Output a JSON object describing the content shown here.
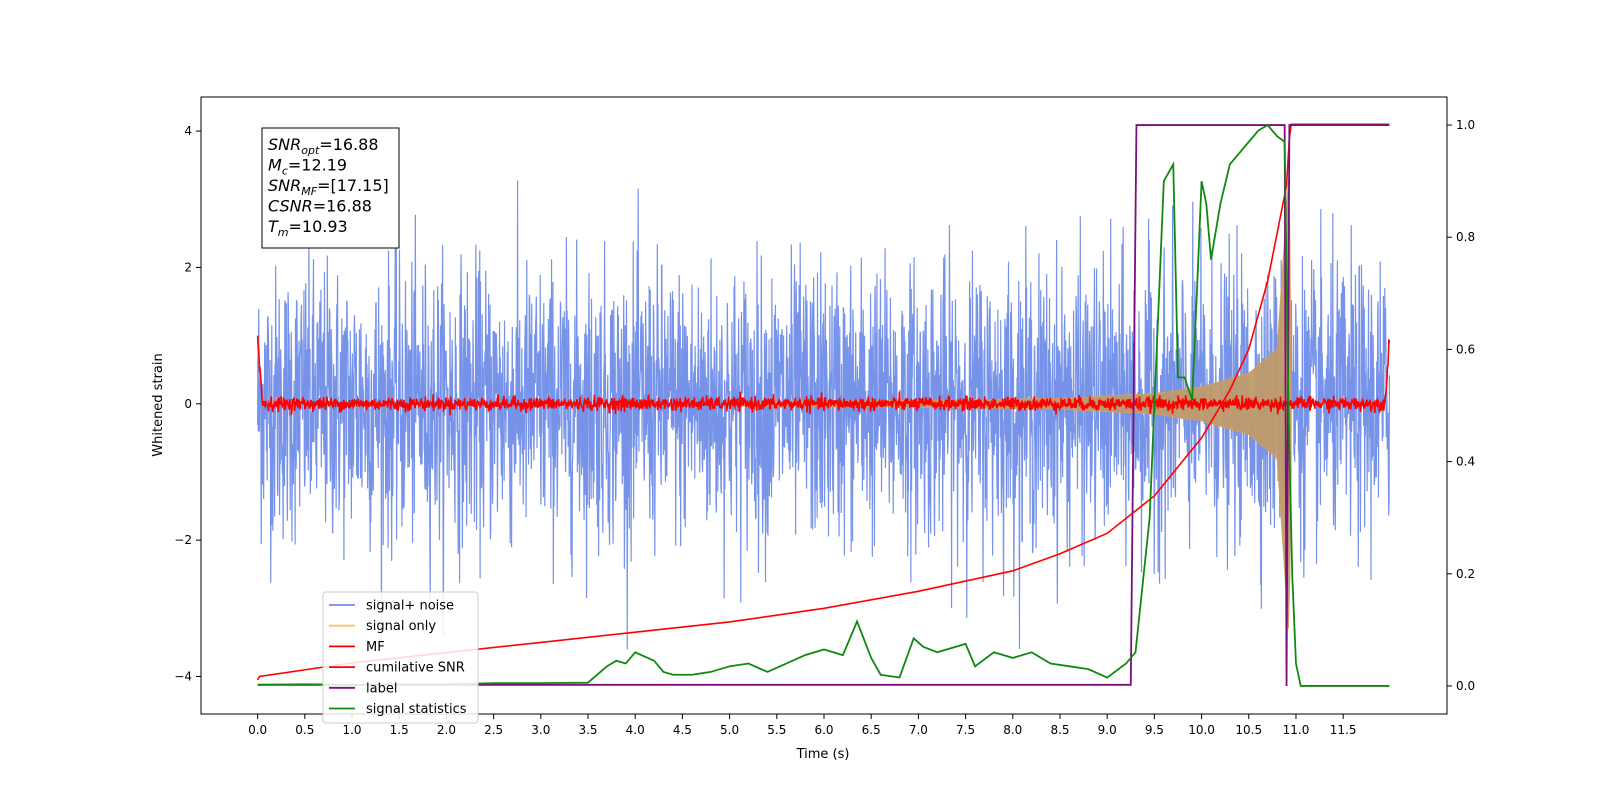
{
  "chart_data": {
    "type": "line",
    "xlabel": "Time (s)",
    "ylabel": "Whitened strain",
    "ylabel_right": "",
    "xlim": [
      -0.6,
      12.6
    ],
    "ylim": [
      -4.55,
      4.5
    ],
    "ylim_right": [
      -0.05,
      1.05
    ],
    "x_ticks": [
      "0.0",
      "0.5",
      "1.0",
      "1.5",
      "2.0",
      "2.5",
      "3.0",
      "3.5",
      "4.0",
      "4.5",
      "5.0",
      "5.5",
      "6.0",
      "6.5",
      "7.0",
      "7.5",
      "8.0",
      "8.5",
      "9.0",
      "9.5",
      "10.0",
      "10.5",
      "11.0",
      "11.5"
    ],
    "y_ticks": [
      "4",
      "2",
      "0",
      "−2",
      "−4"
    ],
    "y_ticks_right": [
      "1.0",
      "0.8",
      "0.6",
      "0.4",
      "0.2",
      "0.0"
    ],
    "annotation": {
      "lines": [
        {
          "base": "SNR",
          "sub": "opt",
          "value": "=16.88"
        },
        {
          "base": "M",
          "sub": "c",
          "value": "=12.19"
        },
        {
          "base": "SNR",
          "sub": "MF",
          "value": "=[17.15]"
        },
        {
          "base": "CSNR",
          "sub": "",
          "value": "=16.88"
        },
        {
          "base": "T",
          "sub": "m",
          "value": "=10.93"
        }
      ]
    },
    "legend": {
      "placement": "lower-left",
      "entries": [
        {
          "label": "signal+ noise",
          "color": "#6f8de8"
        },
        {
          "label": "signal only",
          "color": "#f5c36a"
        },
        {
          "label": "MF",
          "color": "#ff0000"
        },
        {
          "label": "cumilative SNR",
          "color": "#ff0000"
        },
        {
          "label": "label",
          "color": "#7b0f7b"
        },
        {
          "label": "signal statistics",
          "color": "#118811"
        }
      ]
    },
    "series": [
      {
        "name": "signal+ noise",
        "axis": "left",
        "description_values": {
          "x_range": [
            0.0,
            11.99
          ],
          "typical_amplitude": 1.0,
          "max_abs": 3.6
        }
      },
      {
        "name": "signal only",
        "axis": "left",
        "envelope": [
          [
            5.0,
            0.03
          ],
          [
            7.0,
            0.05
          ],
          [
            8.5,
            0.08
          ],
          [
            9.5,
            0.15
          ],
          [
            10.0,
            0.25
          ],
          [
            10.5,
            0.45
          ],
          [
            10.8,
            0.8
          ],
          [
            10.93,
            3.5
          ],
          [
            10.95,
            0.0
          ]
        ]
      },
      {
        "name": "MF",
        "axis": "left",
        "description_values": {
          "x_range": [
            0.0,
            11.99
          ],
          "typical_amplitude": 0.05,
          "edge_values": [
            [
              0.0,
              1.0
            ],
            [
              11.99,
              0.9
            ]
          ]
        }
      },
      {
        "name": "cumilative SNR",
        "axis": "left",
        "x": [
          0.0,
          0.02,
          1.0,
          2.0,
          3.0,
          4.0,
          5.0,
          6.0,
          7.0,
          8.0,
          8.5,
          9.0,
          9.5,
          10.0,
          10.3,
          10.5,
          10.7,
          10.8,
          10.9,
          10.93,
          10.95,
          11.0,
          11.5,
          11.99
        ],
        "values": [
          -4.05,
          -4.0,
          -3.8,
          -3.65,
          -3.5,
          -3.35,
          -3.2,
          -3.0,
          -2.75,
          -2.45,
          -2.2,
          -1.9,
          -1.35,
          -0.5,
          0.2,
          0.8,
          1.8,
          2.5,
          3.2,
          3.9,
          4.1,
          4.1,
          4.1,
          4.1
        ]
      },
      {
        "name": "label",
        "axis": "right",
        "x": [
          0.0,
          9.25,
          9.31,
          10.88,
          10.9,
          10.93,
          11.99
        ],
        "values": [
          0.002,
          0.002,
          1.0,
          1.0,
          0.0,
          1.0,
          1.0
        ]
      },
      {
        "name": "signal statistics",
        "axis": "right",
        "x": [
          0.0,
          0.5,
          1.0,
          2.0,
          2.5,
          3.0,
          3.5,
          3.7,
          3.8,
          3.9,
          4.0,
          4.2,
          4.3,
          4.4,
          4.6,
          4.8,
          5.0,
          5.2,
          5.4,
          5.6,
          5.8,
          6.0,
          6.2,
          6.35,
          6.5,
          6.6,
          6.8,
          6.95,
          7.05,
          7.2,
          7.5,
          7.6,
          7.8,
          8.0,
          8.2,
          8.4,
          8.6,
          8.8,
          9.0,
          9.2,
          9.3,
          9.45,
          9.6,
          9.7,
          9.75,
          9.82,
          9.9,
          9.95,
          10.0,
          10.05,
          10.1,
          10.2,
          10.3,
          10.4,
          10.5,
          10.6,
          10.7,
          10.75,
          10.8,
          10.88,
          10.92,
          10.96,
          11.0,
          11.05,
          11.1,
          11.99
        ],
        "values": [
          0.002,
          0.003,
          0.002,
          0.003,
          0.005,
          0.005,
          0.006,
          0.035,
          0.045,
          0.04,
          0.06,
          0.045,
          0.025,
          0.02,
          0.02,
          0.025,
          0.035,
          0.04,
          0.025,
          0.04,
          0.055,
          0.065,
          0.055,
          0.115,
          0.05,
          0.02,
          0.015,
          0.085,
          0.07,
          0.06,
          0.075,
          0.035,
          0.06,
          0.05,
          0.06,
          0.04,
          0.035,
          0.03,
          0.015,
          0.04,
          0.06,
          0.3,
          0.9,
          0.93,
          0.55,
          0.55,
          0.51,
          0.7,
          0.9,
          0.86,
          0.76,
          0.86,
          0.93,
          0.95,
          0.97,
          0.99,
          1.0,
          0.99,
          0.98,
          0.97,
          0.5,
          0.2,
          0.04,
          0.0,
          0.0,
          0.0
        ]
      }
    ]
  }
}
